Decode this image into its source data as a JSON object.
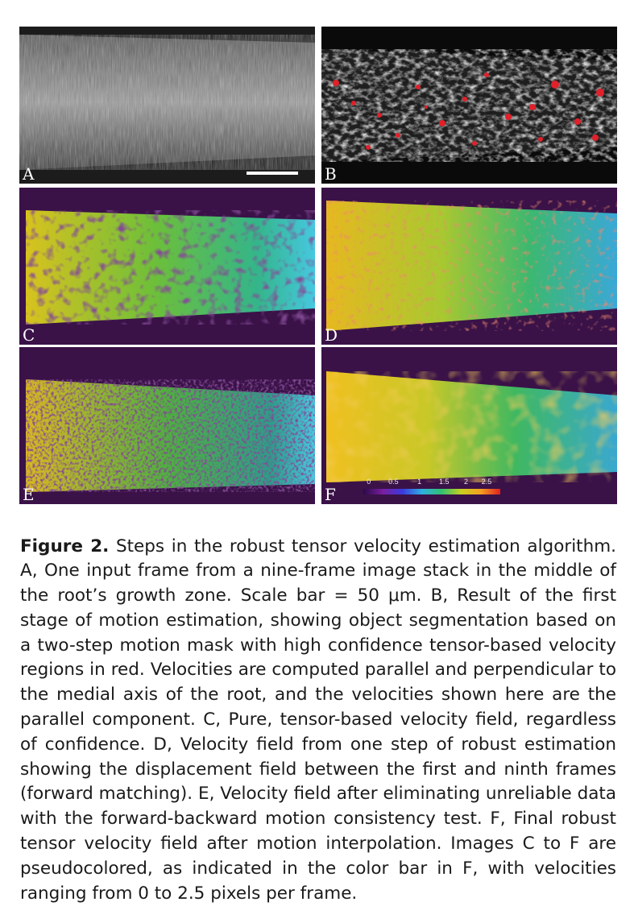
{
  "figure": {
    "panels": [
      {
        "id": "A",
        "label": "A"
      },
      {
        "id": "B",
        "label": "B"
      },
      {
        "id": "C",
        "label": "C"
      },
      {
        "id": "D",
        "label": "D"
      },
      {
        "id": "E",
        "label": "E"
      },
      {
        "id": "F",
        "label": "F"
      }
    ],
    "colorbar": {
      "ticks": [
        "0",
        "0.5",
        "1",
        "1.5",
        "2",
        "2.5"
      ],
      "min": 0,
      "max": 2.5
    }
  },
  "caption": {
    "lead": "Figure 2.",
    "text": " Steps in the robust tensor velocity estimation algorithm. A, One input frame from a nine-frame image stack in the middle of the root’s growth zone. Scale bar = 50 μm. B, Result of the first stage of motion estimation, showing object segmentation based on a two-step motion mask with high confidence tensor-based velocity regions in red. Velocities are computed parallel and perpendicular to the medial axis of the root, and the velocities shown here are the parallel component. C, Pure, tensor-based velocity field, regardless of confidence. D, Velocity field from one step of robust estimation showing the displacement field between the first and ninth frames (forward matching). E, Velocity field after eliminating unreliable data with the forward-backward motion consistency test. F, Final robust tensor velocity field after motion interpolation. Images C to F are pseudocolored, as indicated in the color bar in F, with velocities ranging from 0 to 2.5 pixels per frame."
  }
}
